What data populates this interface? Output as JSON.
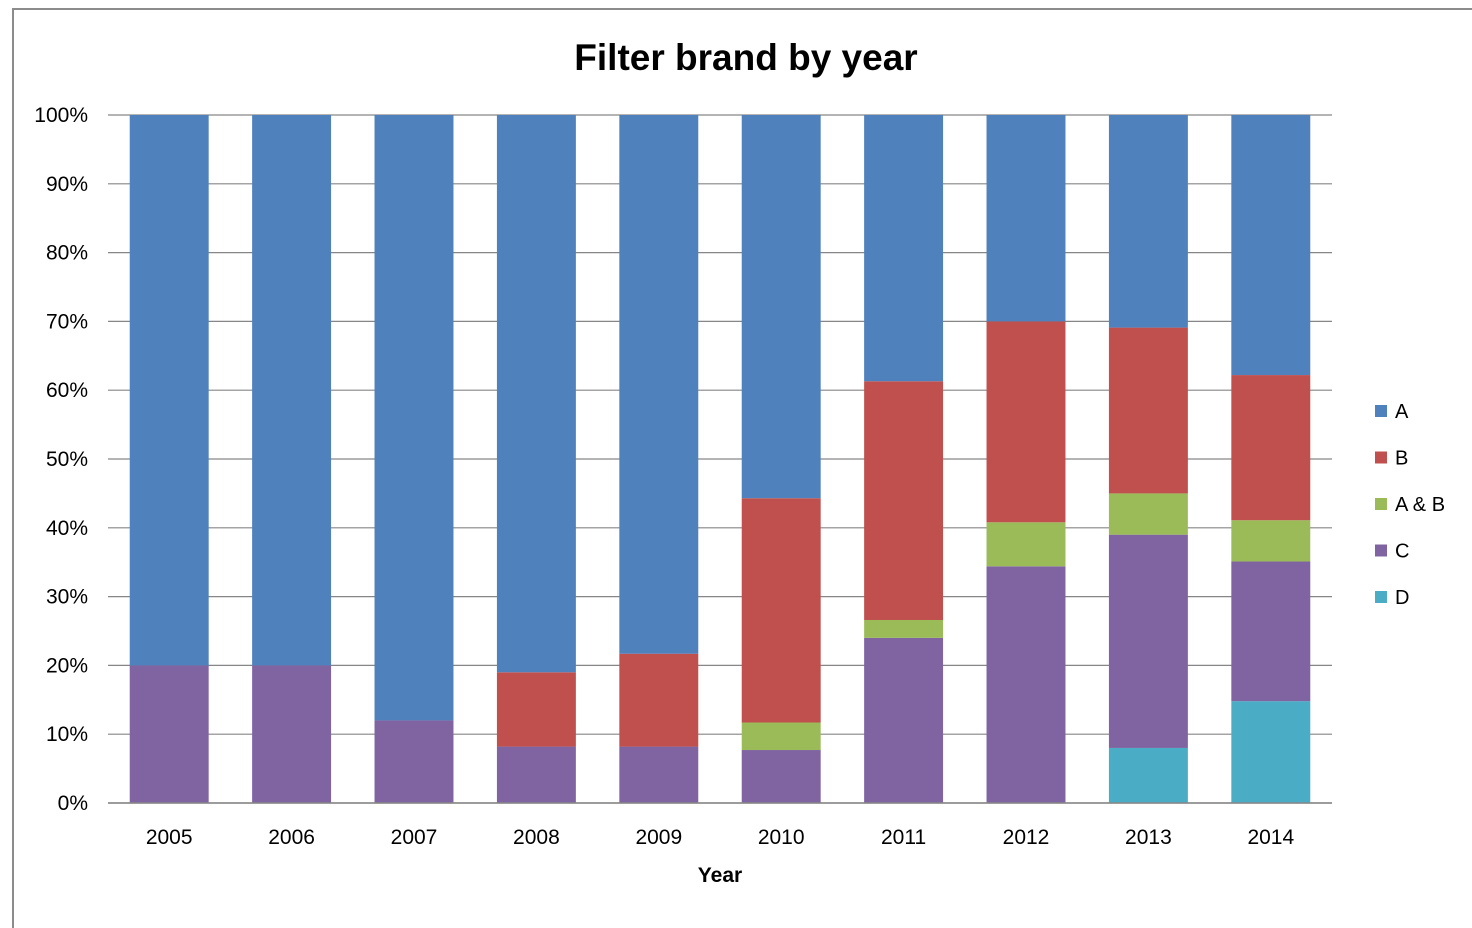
{
  "chart_data": {
    "type": "bar",
    "stacked": "percent",
    "title": "Filter brand by year",
    "xlabel": "Year",
    "ylabel": "",
    "ylim": [
      0,
      100
    ],
    "yticks": [
      "0%",
      "10%",
      "20%",
      "30%",
      "40%",
      "50%",
      "60%",
      "70%",
      "80%",
      "90%",
      "100%"
    ],
    "grid": true,
    "legend_position": "right",
    "categories": [
      "2005",
      "2006",
      "2007",
      "2008",
      "2009",
      "2010",
      "2011",
      "2012",
      "2013",
      "2014"
    ],
    "series": [
      {
        "name": "D",
        "color": "#4BACC6",
        "values": [
          0,
          0,
          0,
          0,
          0,
          0,
          0,
          0,
          8,
          14.8
        ]
      },
      {
        "name": "C",
        "color": "#8064A2",
        "values": [
          20,
          20,
          12,
          8.2,
          8.2,
          7.7,
          24,
          34.4,
          31,
          20.3
        ]
      },
      {
        "name": "A & B",
        "color": "#9BBB59",
        "values": [
          0,
          0,
          0,
          0,
          0,
          4,
          2.6,
          6.4,
          6,
          6
        ]
      },
      {
        "name": "B",
        "color": "#C0504D",
        "values": [
          0,
          0,
          0,
          10.8,
          13.5,
          32.6,
          34.7,
          29.2,
          24.1,
          21.1
        ]
      },
      {
        "name": "A",
        "color": "#4F81BD",
        "values": [
          80,
          80,
          88,
          81,
          78.3,
          55.7,
          38.7,
          30,
          30.9,
          37.8
        ]
      }
    ],
    "legend_order": [
      "A",
      "B",
      "A & B",
      "C",
      "D"
    ]
  }
}
